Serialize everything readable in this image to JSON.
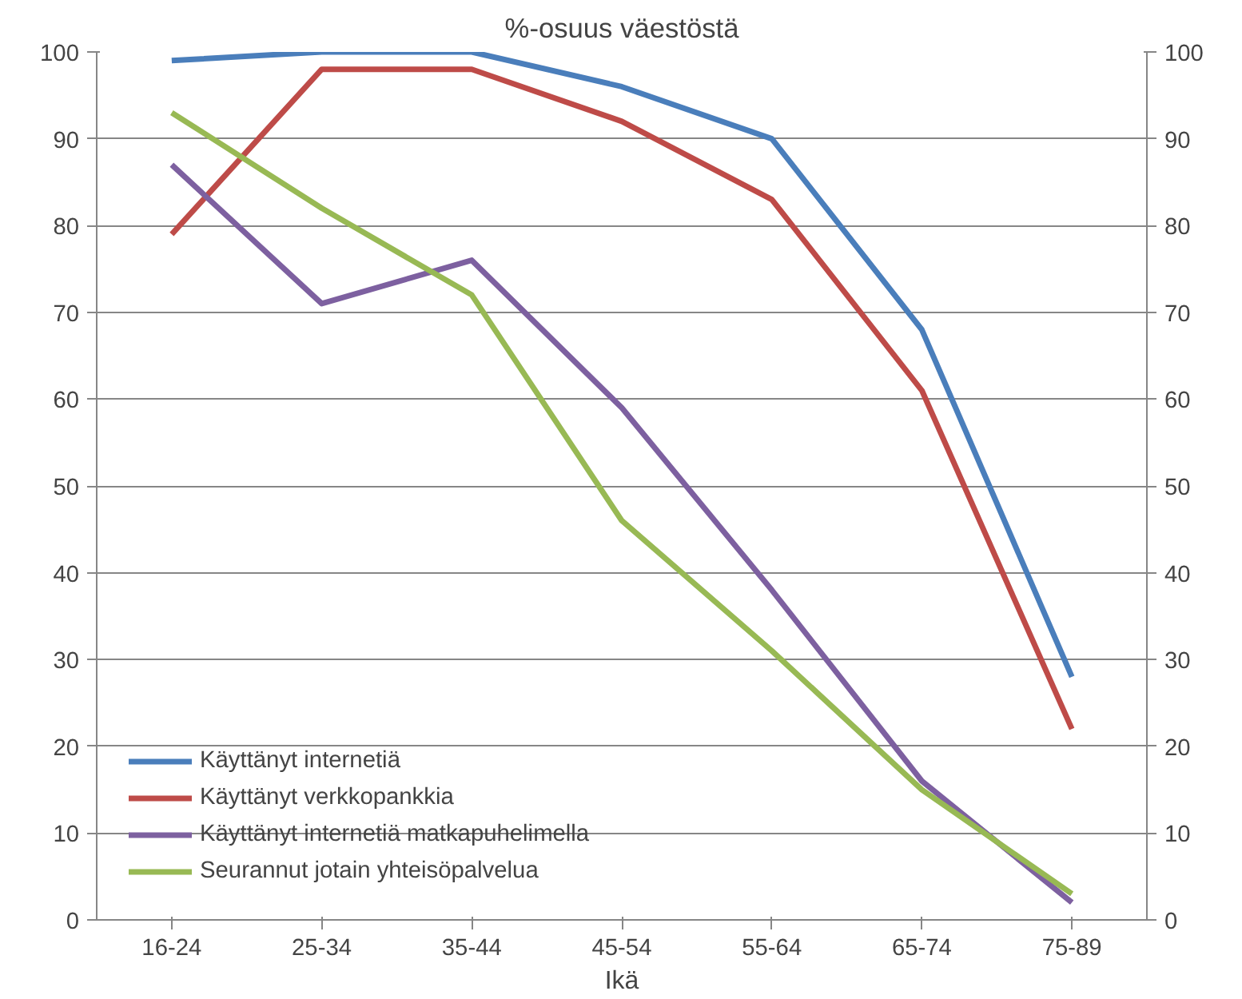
{
  "chart_data": {
    "type": "line",
    "title": "%-osuus väestöstä",
    "xlabel": "Ikä",
    "categories": [
      "16-24",
      "25-34",
      "35-44",
      "45-54",
      "55-64",
      "65-74",
      "75-89"
    ],
    "series": [
      {
        "name": "Käyttänyt internetiä",
        "color": "#4a7ebb",
        "values": [
          99,
          100,
          100,
          96,
          90,
          68,
          28
        ]
      },
      {
        "name": "Käyttänyt verkkopankkia",
        "color": "#be4b48",
        "values": [
          79,
          98,
          98,
          92,
          83,
          61,
          22
        ]
      },
      {
        "name": "Käyttänyt internetiä matkapuhelimella",
        "color": "#7d60a0",
        "values": [
          87,
          71,
          76,
          59,
          38,
          16,
          2
        ]
      },
      {
        "name": "Seurannut jotain yhteisöpalvelua",
        "color": "#98b954",
        "values": [
          93,
          82,
          72,
          46,
          31,
          15,
          3
        ]
      }
    ],
    "ylim": [
      0,
      100
    ],
    "yticks": [
      0,
      10,
      20,
      30,
      40,
      50,
      60,
      70,
      80,
      90,
      100
    ],
    "y2lim": [
      0,
      100
    ],
    "y2ticks": [
      0,
      10,
      20,
      30,
      40,
      50,
      60,
      70,
      80,
      90,
      100
    ],
    "grid": "y",
    "legend": "bottom left",
    "marker": "none",
    "line_style": "solid"
  }
}
